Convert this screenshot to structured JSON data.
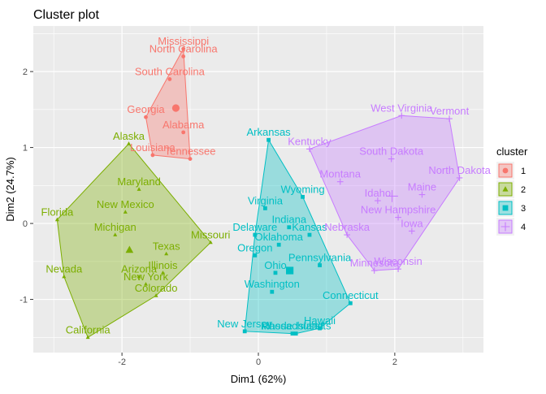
{
  "chart_data": {
    "type": "scatter",
    "title": "Cluster plot",
    "xlabel": "Dim1 (62%)",
    "ylabel": "Dim2 (24.7%)",
    "xlim": [
      -3.3,
      3.3
    ],
    "ylim": [
      -1.7,
      2.6
    ],
    "x_ticks": [
      -2,
      0,
      2
    ],
    "y_ticks": [
      -1,
      0,
      1,
      2
    ],
    "x_tick_labels": [
      "-2",
      "0",
      "2"
    ],
    "y_tick_labels": [
      "-1",
      "0",
      "1",
      "2"
    ],
    "grid": true,
    "legend": {
      "title": "cluster",
      "placement": "right",
      "entries": [
        "1",
        "2",
        "3",
        "4"
      ]
    },
    "clusters": [
      {
        "id": "1",
        "color": "#F8766D",
        "marker": "circle",
        "center": [
          -1.21,
          1.52
        ],
        "points": [
          {
            "label": "Mississippi",
            "x": -1.1,
            "y": 2.3
          },
          {
            "label": "North Carolina",
            "x": -1.1,
            "y": 2.2
          },
          {
            "label": "South Carolina",
            "x": -1.3,
            "y": 1.9
          },
          {
            "label": "Georgia",
            "x": -1.65,
            "y": 1.4
          },
          {
            "label": "Alabama",
            "x": -1.1,
            "y": 1.2
          },
          {
            "label": "Louisiana",
            "x": -1.55,
            "y": 0.9
          },
          {
            "label": "Tennessee",
            "x": -1.0,
            "y": 0.85
          }
        ]
      },
      {
        "id": "2",
        "color": "#7CAE00",
        "marker": "triangle",
        "center": [
          -1.89,
          -0.35
        ],
        "points": [
          {
            "label": "Alaska",
            "x": -1.9,
            "y": 1.05
          },
          {
            "label": "Maryland",
            "x": -1.75,
            "y": 0.45
          },
          {
            "label": "New Mexico",
            "x": -1.95,
            "y": 0.15
          },
          {
            "label": "Florida",
            "x": -2.95,
            "y": 0.05
          },
          {
            "label": "Michigan",
            "x": -2.1,
            "y": -0.15
          },
          {
            "label": "Missouri",
            "x": -0.7,
            "y": -0.25
          },
          {
            "label": "Texas",
            "x": -1.35,
            "y": -0.4
          },
          {
            "label": "Illinois",
            "x": -1.4,
            "y": -0.65
          },
          {
            "label": "Arizona",
            "x": -1.75,
            "y": -0.7
          },
          {
            "label": "New York",
            "x": -1.65,
            "y": -0.8
          },
          {
            "label": "Nevada",
            "x": -2.85,
            "y": -0.7
          },
          {
            "label": "Colorado",
            "x": -1.5,
            "y": -0.95
          },
          {
            "label": "California",
            "x": -2.5,
            "y": -1.5
          }
        ]
      },
      {
        "id": "3",
        "color": "#00BFC4",
        "marker": "square",
        "center": [
          0.46,
          -0.62
        ],
        "points": [
          {
            "label": "Arkansas",
            "x": 0.15,
            "y": 1.1
          },
          {
            "label": "Wyoming",
            "x": 0.65,
            "y": 0.35
          },
          {
            "label": "Virginia",
            "x": 0.1,
            "y": 0.2
          },
          {
            "label": "Indiana",
            "x": 0.45,
            "y": -0.05
          },
          {
            "label": "Kansas",
            "x": 0.75,
            "y": -0.15
          },
          {
            "label": "Delaware",
            "x": -0.05,
            "y": -0.15
          },
          {
            "label": "Oklahoma",
            "x": 0.3,
            "y": -0.28
          },
          {
            "label": "Oregon",
            "x": -0.05,
            "y": -0.42
          },
          {
            "label": "Pennsylvania",
            "x": 0.9,
            "y": -0.55
          },
          {
            "label": "Ohio",
            "x": 0.25,
            "y": -0.65
          },
          {
            "label": "Washington",
            "x": 0.2,
            "y": -0.9
          },
          {
            "label": "Connecticut",
            "x": 1.35,
            "y": -1.05
          },
          {
            "label": "New Jersey",
            "x": -0.2,
            "y": -1.42
          },
          {
            "label": "Massachusetts",
            "x": 0.55,
            "y": -1.45
          },
          {
            "label": "Rhode Island",
            "x": 0.5,
            "y": -1.45
          },
          {
            "label": "Hawaii",
            "x": 0.9,
            "y": -1.38
          }
        ]
      },
      {
        "id": "4",
        "color": "#C77CFF",
        "marker": "plus",
        "center": [
          1.96,
          0.36
        ],
        "points": [
          {
            "label": "West Virginia",
            "x": 2.1,
            "y": 1.42
          },
          {
            "label": "Vermont",
            "x": 2.8,
            "y": 1.38
          },
          {
            "label": "Kentucky",
            "x": 0.75,
            "y": 0.98
          },
          {
            "label": "South Dakota",
            "x": 1.95,
            "y": 0.85
          },
          {
            "label": "North Dakota",
            "x": 2.95,
            "y": 0.6
          },
          {
            "label": "Montana",
            "x": 1.2,
            "y": 0.55
          },
          {
            "label": "Maine",
            "x": 2.4,
            "y": 0.38
          },
          {
            "label": "Idaho",
            "x": 1.75,
            "y": 0.3
          },
          {
            "label": "New Hampshire",
            "x": 2.05,
            "y": 0.08
          },
          {
            "label": "Iowa",
            "x": 2.25,
            "y": -0.1
          },
          {
            "label": "Nebraska",
            "x": 1.3,
            "y": -0.15
          },
          {
            "label": "Wisconsin",
            "x": 2.05,
            "y": -0.6
          },
          {
            "label": "Minnesota",
            "x": 1.7,
            "y": -0.62
          }
        ]
      }
    ]
  }
}
